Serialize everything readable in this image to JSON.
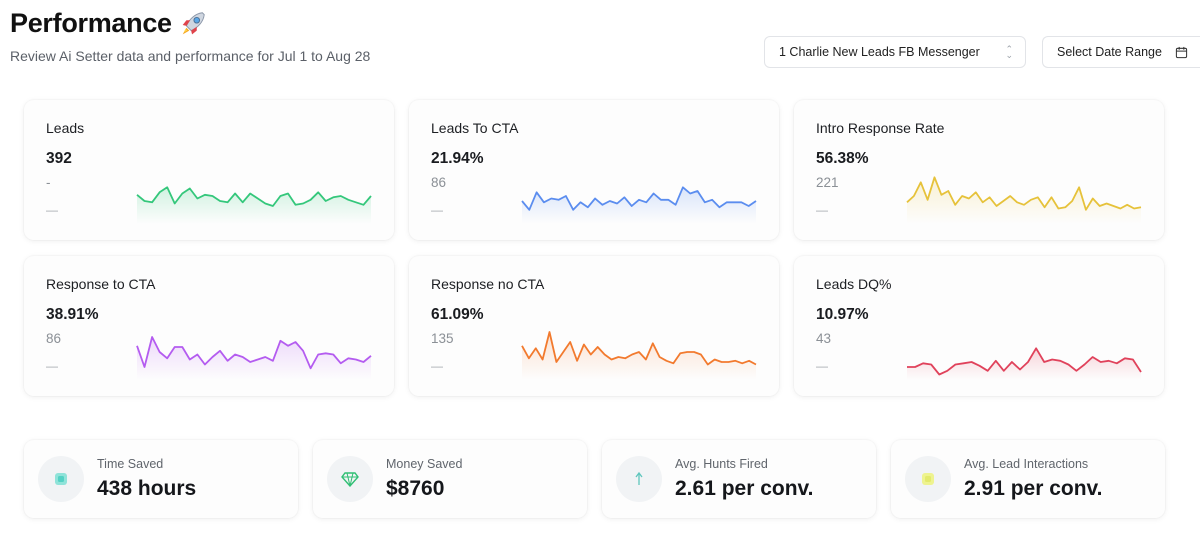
{
  "header": {
    "title": "Performance",
    "subtitle": "Review Ai Setter data and performance for Jul 1 to Aug 28"
  },
  "controls": {
    "source_select": "1 Charlie New Leads FB Messenger",
    "date_range": "Select Date Range"
  },
  "cards": [
    {
      "label": "Leads",
      "value": "392",
      "sub": "-",
      "dash": "—",
      "color": "#34c77b",
      "series": [
        61,
        56,
        55,
        63,
        67,
        54,
        62,
        66,
        58,
        61,
        60,
        56,
        55,
        62,
        55,
        62,
        58,
        54,
        52,
        60,
        62,
        53,
        54,
        57,
        63,
        56,
        59,
        60,
        57,
        55,
        53,
        60
      ]
    },
    {
      "label": "Leads To CTA",
      "value": "21.94%",
      "sub": "86",
      "dash": "—",
      "color": "#5b8def",
      "series": [
        56,
        49,
        63,
        55,
        58,
        57,
        60,
        49,
        55,
        51,
        58,
        53,
        56,
        54,
        59,
        52,
        57,
        55,
        62,
        57,
        57,
        53,
        67,
        62,
        64,
        55,
        57,
        51,
        55,
        55,
        55,
        52,
        56
      ]
    },
    {
      "label": "Intro Response Rate",
      "value": "56.38%",
      "sub": "221",
      "dash": "—",
      "color": "#e6c23a",
      "series": [
        55,
        60,
        71,
        57,
        75,
        61,
        64,
        53,
        60,
        58,
        63,
        55,
        59,
        52,
        56,
        60,
        55,
        53,
        57,
        59,
        51,
        59,
        50,
        51,
        56,
        67,
        49,
        58,
        52,
        54,
        52,
        50,
        53,
        50,
        51
      ]
    },
    {
      "label": "Response to CTA",
      "value": "38.91%",
      "sub": "86",
      "dash": "—",
      "color": "#b45cf0",
      "series": [
        65,
        48,
        72,
        60,
        55,
        64,
        64,
        54,
        58,
        50,
        56,
        61,
        53,
        58,
        56,
        52,
        54,
        56,
        53,
        69,
        65,
        68,
        61,
        47,
        58,
        59,
        58,
        51,
        55,
        54,
        52,
        57
      ]
    },
    {
      "label": "Response no CTA",
      "value": "61.09%",
      "sub": "135",
      "dash": "—",
      "color": "#f27a2e",
      "series": [
        65,
        55,
        63,
        54,
        76,
        52,
        60,
        68,
        53,
        66,
        58,
        64,
        58,
        54,
        56,
        55,
        58,
        60,
        54,
        67,
        56,
        53,
        51,
        59,
        60,
        60,
        58,
        50,
        54,
        52,
        52,
        53,
        51,
        53,
        50
      ]
    },
    {
      "label": "Leads DQ%",
      "value": "10.97%",
      "sub": "43",
      "dash": "—",
      "color": "#e0425b",
      "series": [
        48,
        48,
        51,
        50,
        42,
        45,
        50,
        51,
        52,
        49,
        45,
        53,
        45,
        52,
        46,
        52,
        63,
        52,
        54,
        53,
        50,
        45,
        50,
        56,
        52,
        53,
        51,
        55,
        54,
        44
      ]
    }
  ],
  "stats": [
    {
      "label": "Time Saved",
      "value": "438 hours",
      "icon": "clock-icon",
      "icon_color": "#54d1c4"
    },
    {
      "label": "Money Saved",
      "value": "$8760",
      "icon": "diamond-icon",
      "icon_color": "#3ccf85"
    },
    {
      "label": "Avg. Hunts Fired",
      "value": "2.61 per conv.",
      "icon": "arrow-up-icon",
      "icon_color": "#5fc6bd"
    },
    {
      "label": "Avg. Lead Interactions",
      "value": "2.91 per conv.",
      "icon": "chat-icon",
      "icon_color": "#e6ee7a"
    }
  ]
}
